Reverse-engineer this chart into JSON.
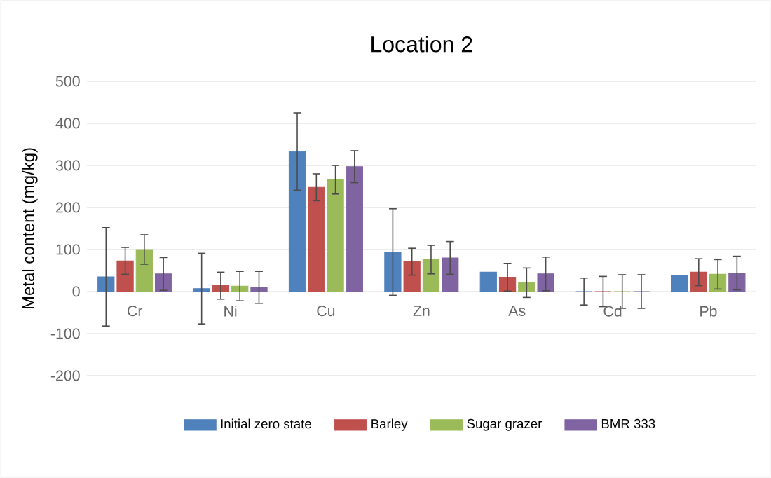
{
  "chart_data": {
    "type": "bar",
    "title": "Location 2",
    "ylabel": "Metal content (mg/kg)",
    "categories": [
      "Cr",
      "Ni",
      "Cu",
      "Zn",
      "As",
      "Cd",
      "Pb"
    ],
    "series": [
      {
        "name": "Initial zero state",
        "color": "#4f81bd",
        "values": [
          35,
          7,
          333,
          94,
          46,
          0,
          39
        ],
        "errors": [
          117,
          84,
          92,
          103,
          null,
          32,
          null
        ]
      },
      {
        "name": "Barley",
        "color": "#c0504d",
        "values": [
          73,
          14,
          248,
          71,
          34,
          0,
          46
        ],
        "errors": [
          32,
          32,
          32,
          32,
          33,
          36,
          32
        ]
      },
      {
        "name": "Sugar grazer",
        "color": "#9bbb59",
        "values": [
          100,
          13,
          266,
          76,
          21,
          0,
          41
        ],
        "errors": [
          35,
          35,
          34,
          34,
          35,
          40,
          35
        ]
      },
      {
        "name": "BMR 333",
        "color": "#8064a2",
        "values": [
          42,
          10,
          297,
          80,
          42,
          0,
          44
        ],
        "errors": [
          39,
          38,
          38,
          39,
          40,
          40,
          40
        ]
      }
    ],
    "ylim": [
      -200,
      500
    ],
    "yticks": [
      -200,
      -100,
      0,
      100,
      200,
      300,
      400,
      500
    ],
    "grid": "y",
    "legend": "bottom"
  }
}
